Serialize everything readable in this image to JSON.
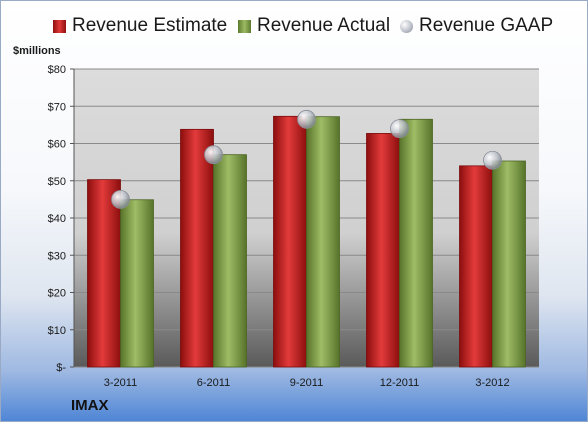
{
  "chart_data": {
    "type": "bar",
    "title": "",
    "ylabel": "$millions",
    "categories": [
      "3-2011",
      "6-2011",
      "9-2011",
      "12-2011",
      "3-2012"
    ],
    "series": [
      {
        "name": "Revenue Estimate",
        "type": "bar",
        "color": "#d42a2a",
        "values": [
          50.3,
          63.8,
          67.3,
          62.7,
          54.0
        ]
      },
      {
        "name": "Revenue Actual",
        "type": "bar",
        "color": "#8fae57",
        "values": [
          44.9,
          57.0,
          67.2,
          66.5,
          55.3
        ]
      },
      {
        "name": "Revenue GAAP",
        "type": "marker",
        "color": "#c0c4cc",
        "values": [
          45.0,
          57.0,
          66.5,
          64.0,
          55.5
        ]
      }
    ],
    "yticks": [
      "$-",
      "$10",
      "$20",
      "$30",
      "$40",
      "$50",
      "$60",
      "$70",
      "$80"
    ],
    "ylim": [
      0,
      80
    ],
    "grid": true,
    "legend": "top",
    "footer_label": "IMAX"
  }
}
